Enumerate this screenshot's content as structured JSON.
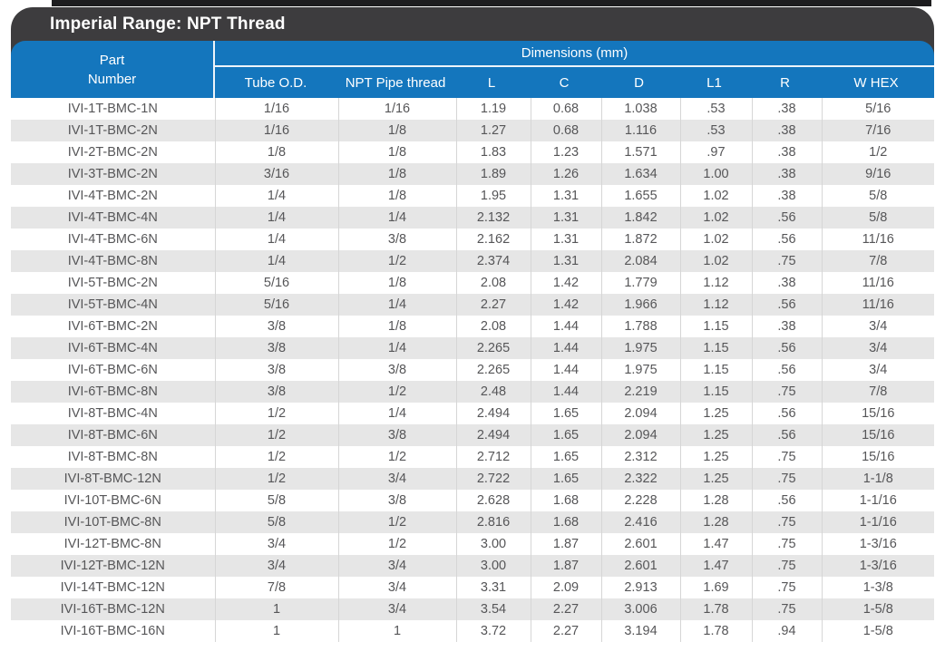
{
  "colors": {
    "title_bar_bg": "#3d3c3e",
    "header_bg": "#1476bd",
    "zebra_stripe": "#e6e6e6",
    "body_text": "#565658",
    "header_text": "#ffffff",
    "column_divider": "#d6d6d6",
    "top_strip": "#1d1d1f"
  },
  "header": {
    "title": "Imperial Range: NPT Thread",
    "part_line1": "Part",
    "part_line2": "Number",
    "dimensions_label": "Dimensions (mm)"
  },
  "table": {
    "columns": [
      "Tube O.D.",
      "NPT Pipe thread",
      "L",
      "C",
      "D",
      "L1",
      "R",
      "W HEX"
    ],
    "rows": [
      [
        "IVI-1T-BMC-1N",
        "1/16",
        "1/16",
        "1.19",
        "0.68",
        "1.038",
        ".53",
        ".38",
        "5/16"
      ],
      [
        "IVI-1T-BMC-2N",
        "1/16",
        "1/8",
        "1.27",
        "0.68",
        "1.116",
        ".53",
        ".38",
        "7/16"
      ],
      [
        "IVI-2T-BMC-2N",
        "1/8",
        "1/8",
        "1.83",
        "1.23",
        "1.571",
        ".97",
        ".38",
        "1/2"
      ],
      [
        "IVI-3T-BMC-2N",
        "3/16",
        "1/8",
        "1.89",
        "1.26",
        "1.634",
        "1.00",
        ".38",
        "9/16"
      ],
      [
        "IVI-4T-BMC-2N",
        "1/4",
        "1/8",
        "1.95",
        "1.31",
        "1.655",
        "1.02",
        ".38",
        "5/8"
      ],
      [
        "IVI-4T-BMC-4N",
        "1/4",
        "1/4",
        "2.132",
        "1.31",
        "1.842",
        "1.02",
        ".56",
        "5/8"
      ],
      [
        "IVI-4T-BMC-6N",
        "1/4",
        "3/8",
        "2.162",
        "1.31",
        "1.872",
        "1.02",
        ".56",
        "11/16"
      ],
      [
        "IVI-4T-BMC-8N",
        "1/4",
        "1/2",
        "2.374",
        "1.31",
        "2.084",
        "1.02",
        ".75",
        "7/8"
      ],
      [
        "IVI-5T-BMC-2N",
        "5/16",
        "1/8",
        "2.08",
        "1.42",
        "1.779",
        "1.12",
        ".38",
        "11/16"
      ],
      [
        "IVI-5T-BMC-4N",
        "5/16",
        "1/4",
        "2.27",
        "1.42",
        "1.966",
        "1.12",
        ".56",
        "11/16"
      ],
      [
        "IVI-6T-BMC-2N",
        "3/8",
        "1/8",
        "2.08",
        "1.44",
        "1.788",
        "1.15",
        ".38",
        "3/4"
      ],
      [
        "IVI-6T-BMC-4N",
        "3/8",
        "1/4",
        "2.265",
        "1.44",
        "1.975",
        "1.15",
        ".56",
        "3/4"
      ],
      [
        "IVI-6T-BMC-6N",
        "3/8",
        "3/8",
        "2.265",
        "1.44",
        "1.975",
        "1.15",
        ".56",
        "3/4"
      ],
      [
        "IVI-6T-BMC-8N",
        "3/8",
        "1/2",
        "2.48",
        "1.44",
        "2.219",
        "1.15",
        ".75",
        "7/8"
      ],
      [
        "IVI-8T-BMC-4N",
        "1/2",
        "1/4",
        "2.494",
        "1.65",
        "2.094",
        "1.25",
        ".56",
        "15/16"
      ],
      [
        "IVI-8T-BMC-6N",
        "1/2",
        "3/8",
        "2.494",
        "1.65",
        "2.094",
        "1.25",
        ".56",
        "15/16"
      ],
      [
        "IVI-8T-BMC-8N",
        "1/2",
        "1/2",
        "2.712",
        "1.65",
        "2.312",
        "1.25",
        ".75",
        "15/16"
      ],
      [
        "IVI-8T-BMC-12N",
        "1/2",
        "3/4",
        "2.722",
        "1.65",
        "2.322",
        "1.25",
        ".75",
        "1-1/8"
      ],
      [
        "IVI-10T-BMC-6N",
        "5/8",
        "3/8",
        "2.628",
        "1.68",
        "2.228",
        "1.28",
        ".56",
        "1-1/16"
      ],
      [
        "IVI-10T-BMC-8N",
        "5/8",
        "1/2",
        "2.816",
        "1.68",
        "2.416",
        "1.28",
        ".75",
        "1-1/16"
      ],
      [
        "IVI-12T-BMC-8N",
        "3/4",
        "1/2",
        "3.00",
        "1.87",
        "2.601",
        "1.47",
        ".75",
        "1-3/16"
      ],
      [
        "IVI-12T-BMC-12N",
        "3/4",
        "3/4",
        "3.00",
        "1.87",
        "2.601",
        "1.47",
        ".75",
        "1-3/16"
      ],
      [
        "IVI-14T-BMC-12N",
        "7/8",
        "3/4",
        "3.31",
        "2.09",
        "2.913",
        "1.69",
        ".75",
        "1-3/8"
      ],
      [
        "IVI-16T-BMC-12N",
        "1",
        "3/4",
        "3.54",
        "2.27",
        "3.006",
        "1.78",
        ".75",
        "1-5/8"
      ],
      [
        "IVI-16T-BMC-16N",
        "1",
        "1",
        "3.72",
        "2.27",
        "3.194",
        "1.78",
        ".94",
        "1-5/8"
      ]
    ]
  }
}
